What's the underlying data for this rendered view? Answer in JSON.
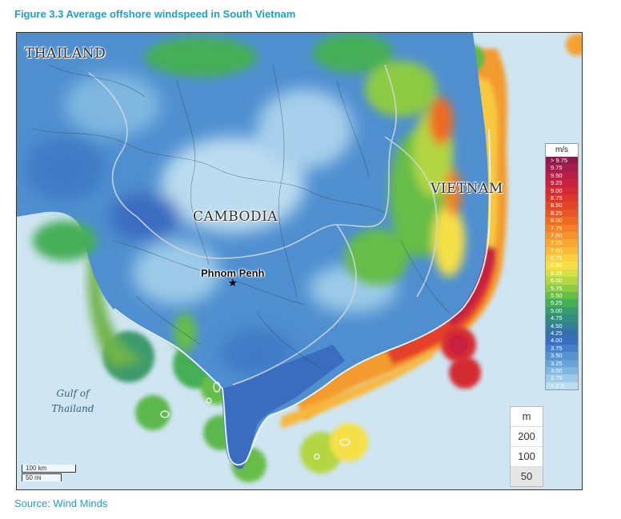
{
  "figure": {
    "title": "Figure 3.3 Average offshore windspeed in South Vietnam",
    "source": "Source: Wind Minds"
  },
  "map": {
    "labels": {
      "thailand": "THAILAND",
      "cambodia": "CAMBODIA",
      "vietnam": "VIETNAM",
      "phnom_penh": "Phnom Penh",
      "gulf_line1": "Gulf of",
      "gulf_line2": "Thailand"
    },
    "capital_marker": "★",
    "scale": {
      "km": "100 km",
      "mi": "50 mi"
    }
  },
  "legend": {
    "unit": "m/s",
    "items": [
      {
        "label": "> 9.75",
        "color": "#8e1a4a"
      },
      {
        "label": "9.75",
        "color": "#a51d4b"
      },
      {
        "label": "9.50",
        "color": "#b81f45"
      },
      {
        "label": "9.25",
        "color": "#c8213f"
      },
      {
        "label": "9.00",
        "color": "#d42a33"
      },
      {
        "label": "8.75",
        "color": "#dd342b"
      },
      {
        "label": "8.50",
        "color": "#e34327"
      },
      {
        "label": "8.25",
        "color": "#e95524"
      },
      {
        "label": "8.00",
        "color": "#ef6b22"
      },
      {
        "label": "7.75",
        "color": "#f37f26"
      },
      {
        "label": "7.50",
        "color": "#f6942b"
      },
      {
        "label": "7.25",
        "color": "#f8a832"
      },
      {
        "label": "7.00",
        "color": "#f9bc38"
      },
      {
        "label": "6.75",
        "color": "#fad03f"
      },
      {
        "label": "6.50",
        "color": "#f6e047"
      },
      {
        "label": "6.25",
        "color": "#d8df45"
      },
      {
        "label": "6.00",
        "color": "#b3d642"
      },
      {
        "label": "5.75",
        "color": "#8ccb43"
      },
      {
        "label": "5.50",
        "color": "#66bd47"
      },
      {
        "label": "5.25",
        "color": "#45ae56"
      },
      {
        "label": "5.00",
        "color": "#369c6d"
      },
      {
        "label": "4.75",
        "color": "#338c82"
      },
      {
        "label": "4.50",
        "color": "#337d95"
      },
      {
        "label": "4.25",
        "color": "#3570a8"
      },
      {
        "label": "4.00",
        "color": "#3a6cc0"
      },
      {
        "label": "3.75",
        "color": "#4680c8"
      },
      {
        "label": "3.50",
        "color": "#5592d0"
      },
      {
        "label": "3.25",
        "color": "#68a4d8"
      },
      {
        "label": "3.00",
        "color": "#7fb7e0"
      },
      {
        "label": "2.75",
        "color": "#9ccae8"
      },
      {
        "label": "< 2.5",
        "color": "#bcdcf0"
      }
    ]
  },
  "depth_legend": {
    "unit": "m",
    "items": [
      "200",
      "100",
      "50"
    ]
  },
  "colors": {
    "title": "#1aa3c9",
    "sea": "#cfe5f2",
    "land_base": "#4f8fd0"
  }
}
